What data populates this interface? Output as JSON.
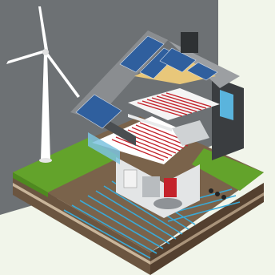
{
  "scene": {
    "subject": "eco-house-cutaway",
    "elements": [
      "wind-turbine",
      "solar-panels",
      "chimney",
      "underfloor-heating",
      "heat-pump",
      "ground-heat-exchanger",
      "terrain-block"
    ]
  },
  "colors": {
    "page_background": "#f1f5ea",
    "backdrop": "#6d7174",
    "grass": "#63a32b",
    "soil": "#6b5540",
    "solar_panel": "#2f5f9e",
    "heating_pipe_red": "#c4232b",
    "ground_pipe_blue": "#3aa9d6",
    "roof_tile": "#8a8d90"
  }
}
